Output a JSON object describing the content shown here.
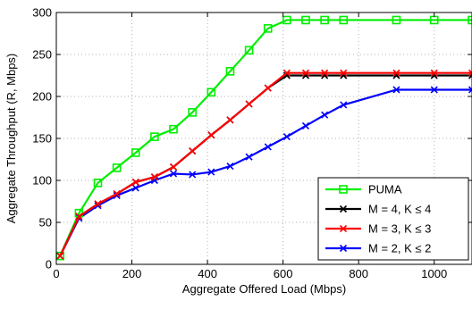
{
  "chart_data": {
    "type": "line",
    "title": "",
    "xlabel": "Aggregate Offered Load (Mbps)",
    "ylabel": "Aggregate Throughput (R, Mbps)",
    "xlim": [
      0,
      1100
    ],
    "ylim": [
      0,
      300
    ],
    "xticks": [
      0,
      200,
      400,
      600,
      800,
      1000
    ],
    "yticks": [
      0,
      50,
      100,
      150,
      200,
      250,
      300
    ],
    "xtick_labels": [
      "0",
      "200",
      "400",
      "600",
      "800",
      "1000"
    ],
    "ytick_labels": [
      "0",
      "50",
      "100",
      "150",
      "200",
      "250",
      "300"
    ],
    "grid": true,
    "legend_position": "bottom-right",
    "series": [
      {
        "name": "PUMA",
        "color": "#00ee00",
        "marker": "square",
        "x": [
          10,
          60,
          110,
          160,
          210,
          260,
          310,
          360,
          410,
          460,
          510,
          560,
          610,
          660,
          710,
          760,
          900,
          1000,
          1100
        ],
        "y": [
          10,
          61,
          97,
          115,
          133,
          152,
          161,
          181,
          205,
          230,
          255,
          281,
          291,
          291,
          291,
          291,
          291,
          291,
          291
        ]
      },
      {
        "name": "M = 4, K ≤ 4",
        "color": "#000000",
        "marker": "x",
        "x": [
          10,
          60,
          110,
          160,
          210,
          260,
          310,
          360,
          410,
          460,
          510,
          560,
          610,
          660,
          710,
          760,
          900,
          1000,
          1100
        ],
        "y": [
          10,
          57,
          72,
          84,
          98,
          104,
          116,
          135,
          154,
          172,
          191,
          210,
          225,
          225,
          225,
          225,
          225,
          225,
          225
        ]
      },
      {
        "name": "M = 3, K ≤ 3",
        "color": "#ff0000",
        "marker": "x",
        "x": [
          10,
          60,
          110,
          160,
          210,
          260,
          310,
          360,
          410,
          460,
          510,
          560,
          610,
          660,
          710,
          760,
          900,
          1000,
          1100
        ],
        "y": [
          10,
          57,
          72,
          84,
          98,
          104,
          116,
          135,
          154,
          172,
          191,
          210,
          228,
          228,
          228,
          228,
          228,
          228,
          228
        ]
      },
      {
        "name": "M = 2, K ≤ 2",
        "color": "#0000ff",
        "marker": "x",
        "x": [
          10,
          60,
          110,
          160,
          210,
          260,
          310,
          360,
          410,
          460,
          510,
          560,
          610,
          660,
          710,
          760,
          900,
          1000,
          1100
        ],
        "y": [
          10,
          55,
          70,
          82,
          91,
          100,
          108,
          107,
          110,
          117,
          128,
          140,
          152,
          165,
          178,
          190,
          208,
          208,
          208
        ]
      }
    ]
  }
}
